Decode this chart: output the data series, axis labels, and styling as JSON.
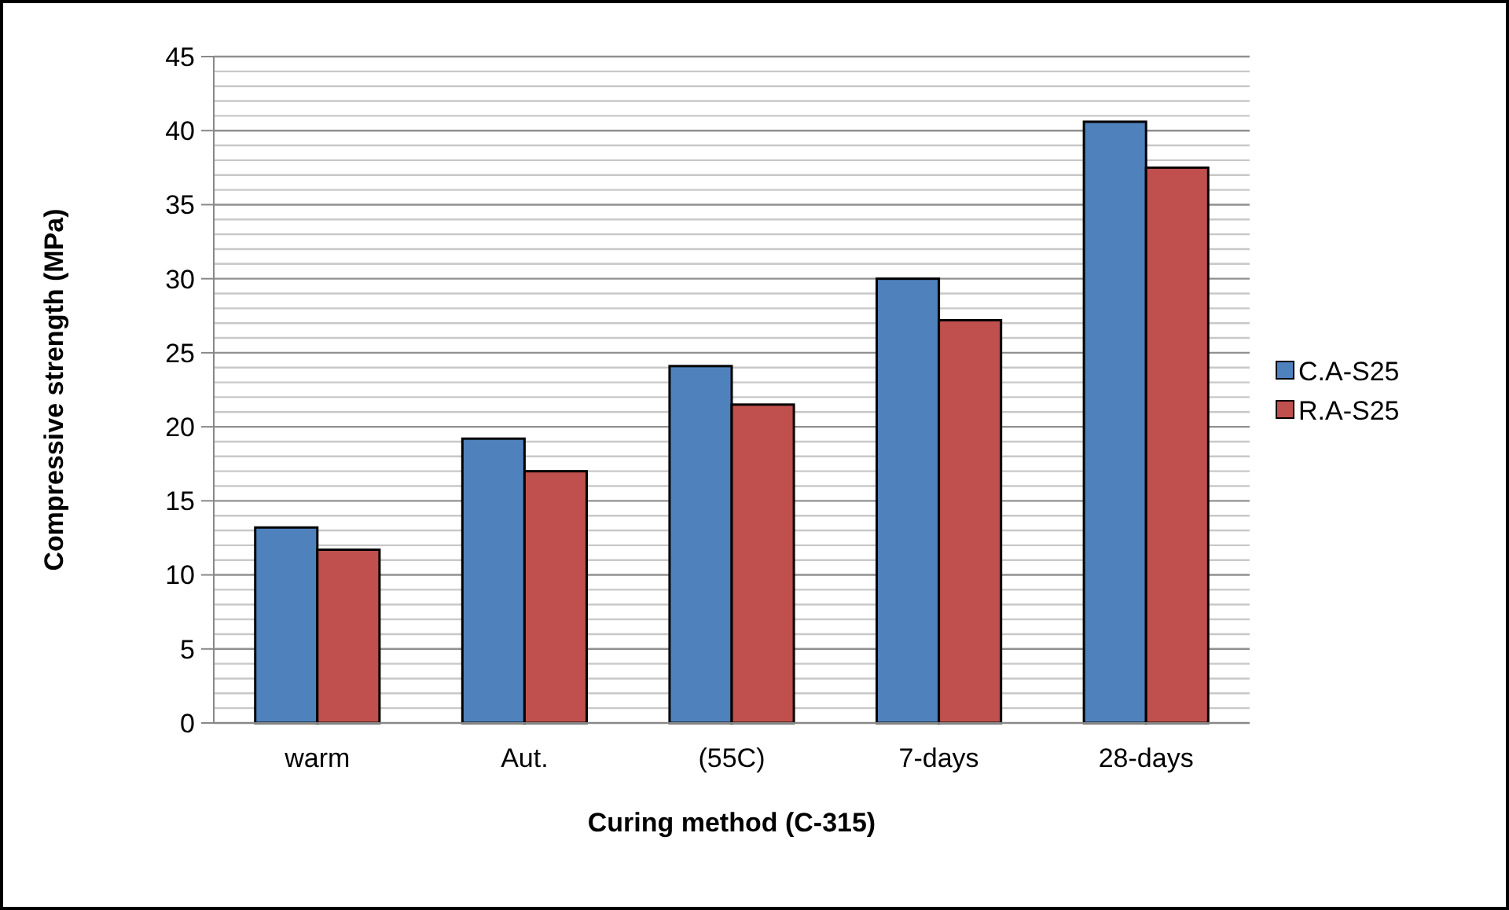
{
  "chart_data": {
    "type": "bar",
    "xlabel": "Curing method (C-315)",
    "ylabel": "Compressive strength (MPa)",
    "categories": [
      "warm",
      "Aut.",
      "(55C)",
      "7-days",
      "28-days"
    ],
    "series": [
      {
        "name": "C.A-S25",
        "color": "#4f81bd",
        "values": [
          13.2,
          19.2,
          24.1,
          30.0,
          40.6
        ]
      },
      {
        "name": "R.A-S25",
        "color": "#c0504d",
        "values": [
          11.7,
          17.0,
          21.5,
          27.2,
          37.5
        ]
      }
    ],
    "ylim": [
      0,
      45
    ],
    "yticks": [
      0,
      {
        "value": 1,
        "label": null
      },
      {
        "value": 2,
        "label": null
      },
      {
        "value": 3,
        "label": null
      },
      {
        "value": 4,
        "label": null
      },
      5,
      {
        "value": 6,
        "label": null
      },
      {
        "value": 7,
        "label": null
      },
      {
        "value": 8,
        "label": null
      },
      {
        "value": 9,
        "label": null
      },
      10,
      {
        "value": 11,
        "label": null
      },
      {
        "value": 12,
        "label": null
      },
      {
        "value": 13,
        "label": null
      },
      {
        "value": 14,
        "label": null
      },
      15,
      {
        "value": 16,
        "label": null
      },
      {
        "value": 17,
        "label": null
      },
      {
        "value": 18,
        "label": null
      },
      {
        "value": 19,
        "label": null
      },
      20,
      {
        "value": 21,
        "label": null
      },
      {
        "value": 22,
        "label": null
      },
      {
        "value": 23,
        "label": null
      },
      {
        "value": 24,
        "label": null
      },
      25,
      {
        "value": 26,
        "label": null
      },
      {
        "value": 27,
        "label": null
      },
      {
        "value": 28,
        "label": null
      },
      {
        "value": 29,
        "label": null
      },
      30,
      {
        "value": 31,
        "label": null
      },
      {
        "value": 32,
        "label": null
      },
      {
        "value": 33,
        "label": null
      },
      {
        "value": 34,
        "label": null
      },
      35,
      {
        "value": 36,
        "label": null
      },
      {
        "value": 37,
        "label": null
      },
      {
        "value": 38,
        "label": null
      },
      {
        "value": 39,
        "label": null
      },
      40,
      {
        "value": 41,
        "label": null
      },
      {
        "value": 42,
        "label": null
      },
      {
        "value": 43,
        "label": null
      },
      {
        "value": 44,
        "label": null
      },
      45
    ],
    "grid": "y",
    "legend": "right"
  }
}
